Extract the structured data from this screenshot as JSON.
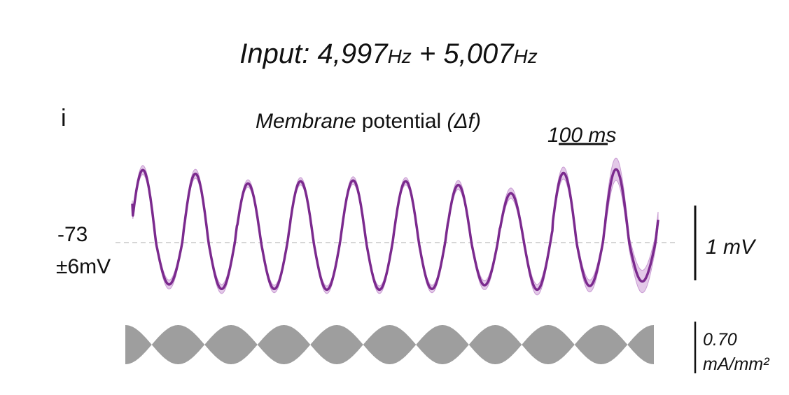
{
  "chart_data": {
    "type": "line",
    "title": {
      "prefix": "Input: ",
      "f1": "4,997",
      "unit1": "Hz",
      "plus": " + ",
      "f2": "5,007",
      "unit2": "Hz"
    },
    "panel_label": "i",
    "subtitle": {
      "italic_part": "Membrane",
      "plain_part": " potential ",
      "delta_part": "(Δf)"
    },
    "time_scalebar": {
      "label": "100 ms",
      "value_ms": 100
    },
    "baseline_label": {
      "value": "-73",
      "spread": "±6mV"
    },
    "voltage_scalebar": {
      "label": "1 mV",
      "value_mV": 1
    },
    "current_scalebar": {
      "line1": "0.70",
      "line2": "mA/mm²",
      "value_mA_per_mm2": 0.7
    },
    "membrane_potential": {
      "name": "Membrane potential",
      "beat_frequency_hz": 10,
      "cycles": 10,
      "color": "#7b2a8e",
      "band_color": "#d9b7e0",
      "peaks_mV": [
        0.97,
        0.92,
        0.79,
        0.82,
        0.83,
        0.82,
        0.77,
        0.66,
        0.93,
        0.98
      ],
      "troughs_mV": [
        -0.56,
        -0.62,
        -0.62,
        -0.63,
        -0.63,
        -0.62,
        -0.57,
        -0.63,
        -0.58,
        -0.52
      ],
      "band_halfwidth_mV": [
        0.06,
        0.06,
        0.05,
        0.05,
        0.05,
        0.05,
        0.06,
        0.07,
        0.08,
        0.15
      ]
    },
    "input_current": {
      "name": "Input current",
      "envelope_cycles": 10,
      "amplitude_mA_per_mm2": 0.7,
      "color": "#9e9e9e"
    },
    "baseline_color": "#c8c8c8"
  }
}
